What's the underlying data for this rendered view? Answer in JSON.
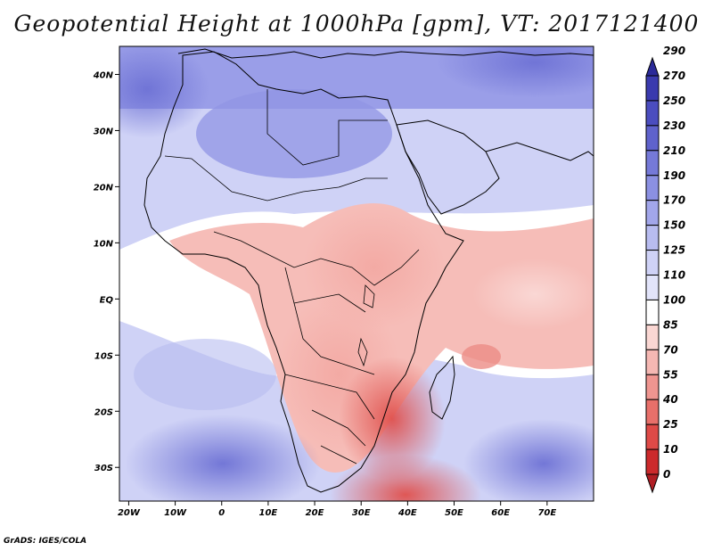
{
  "title": "Geopotential Height at 1000hPa [gpm], VT: 2017121400",
  "credit": "GrADS: IGES/COLA",
  "map": {
    "lon_range": [
      -22,
      80
    ],
    "lat_range": [
      -36,
      45
    ],
    "lat_ticks": [
      {
        "lat": 40,
        "label": "40N"
      },
      {
        "lat": 30,
        "label": "30N"
      },
      {
        "lat": 20,
        "label": "20N"
      },
      {
        "lat": 10,
        "label": "10N"
      },
      {
        "lat": 0,
        "label": "EQ"
      },
      {
        "lat": -10,
        "label": "10S"
      },
      {
        "lat": -20,
        "label": "20S"
      },
      {
        "lat": -30,
        "label": "30S"
      }
    ],
    "lon_ticks": [
      {
        "lon": -20,
        "label": "20W"
      },
      {
        "lon": -10,
        "label": "10W"
      },
      {
        "lon": 0,
        "label": "0"
      },
      {
        "lon": 10,
        "label": "10E"
      },
      {
        "lon": 20,
        "label": "20E"
      },
      {
        "lon": 30,
        "label": "30E"
      },
      {
        "lon": 40,
        "label": "40E"
      },
      {
        "lon": 50,
        "label": "50E"
      },
      {
        "lon": 60,
        "label": "60E"
      },
      {
        "lon": 70,
        "label": "70E"
      }
    ]
  },
  "colorbar": {
    "levels": [
      "0",
      "10",
      "25",
      "40",
      "55",
      "70",
      "85",
      "100",
      "110",
      "125",
      "150",
      "170",
      "190",
      "210",
      "230",
      "250",
      "270",
      "290"
    ],
    "colors": [
      "#b01e24",
      "#cc2a2c",
      "#de4a47",
      "#e8706a",
      "#ef9590",
      "#f5b8b3",
      "#fad7d3",
      "#ffffff",
      "#e2e4fa",
      "#cfd2f6",
      "#b8bcf0",
      "#a2a6ea",
      "#8b90e2",
      "#7579d8",
      "#5f62cc",
      "#4b4dbf",
      "#3a3aae",
      "#2b2a99"
    ]
  }
}
